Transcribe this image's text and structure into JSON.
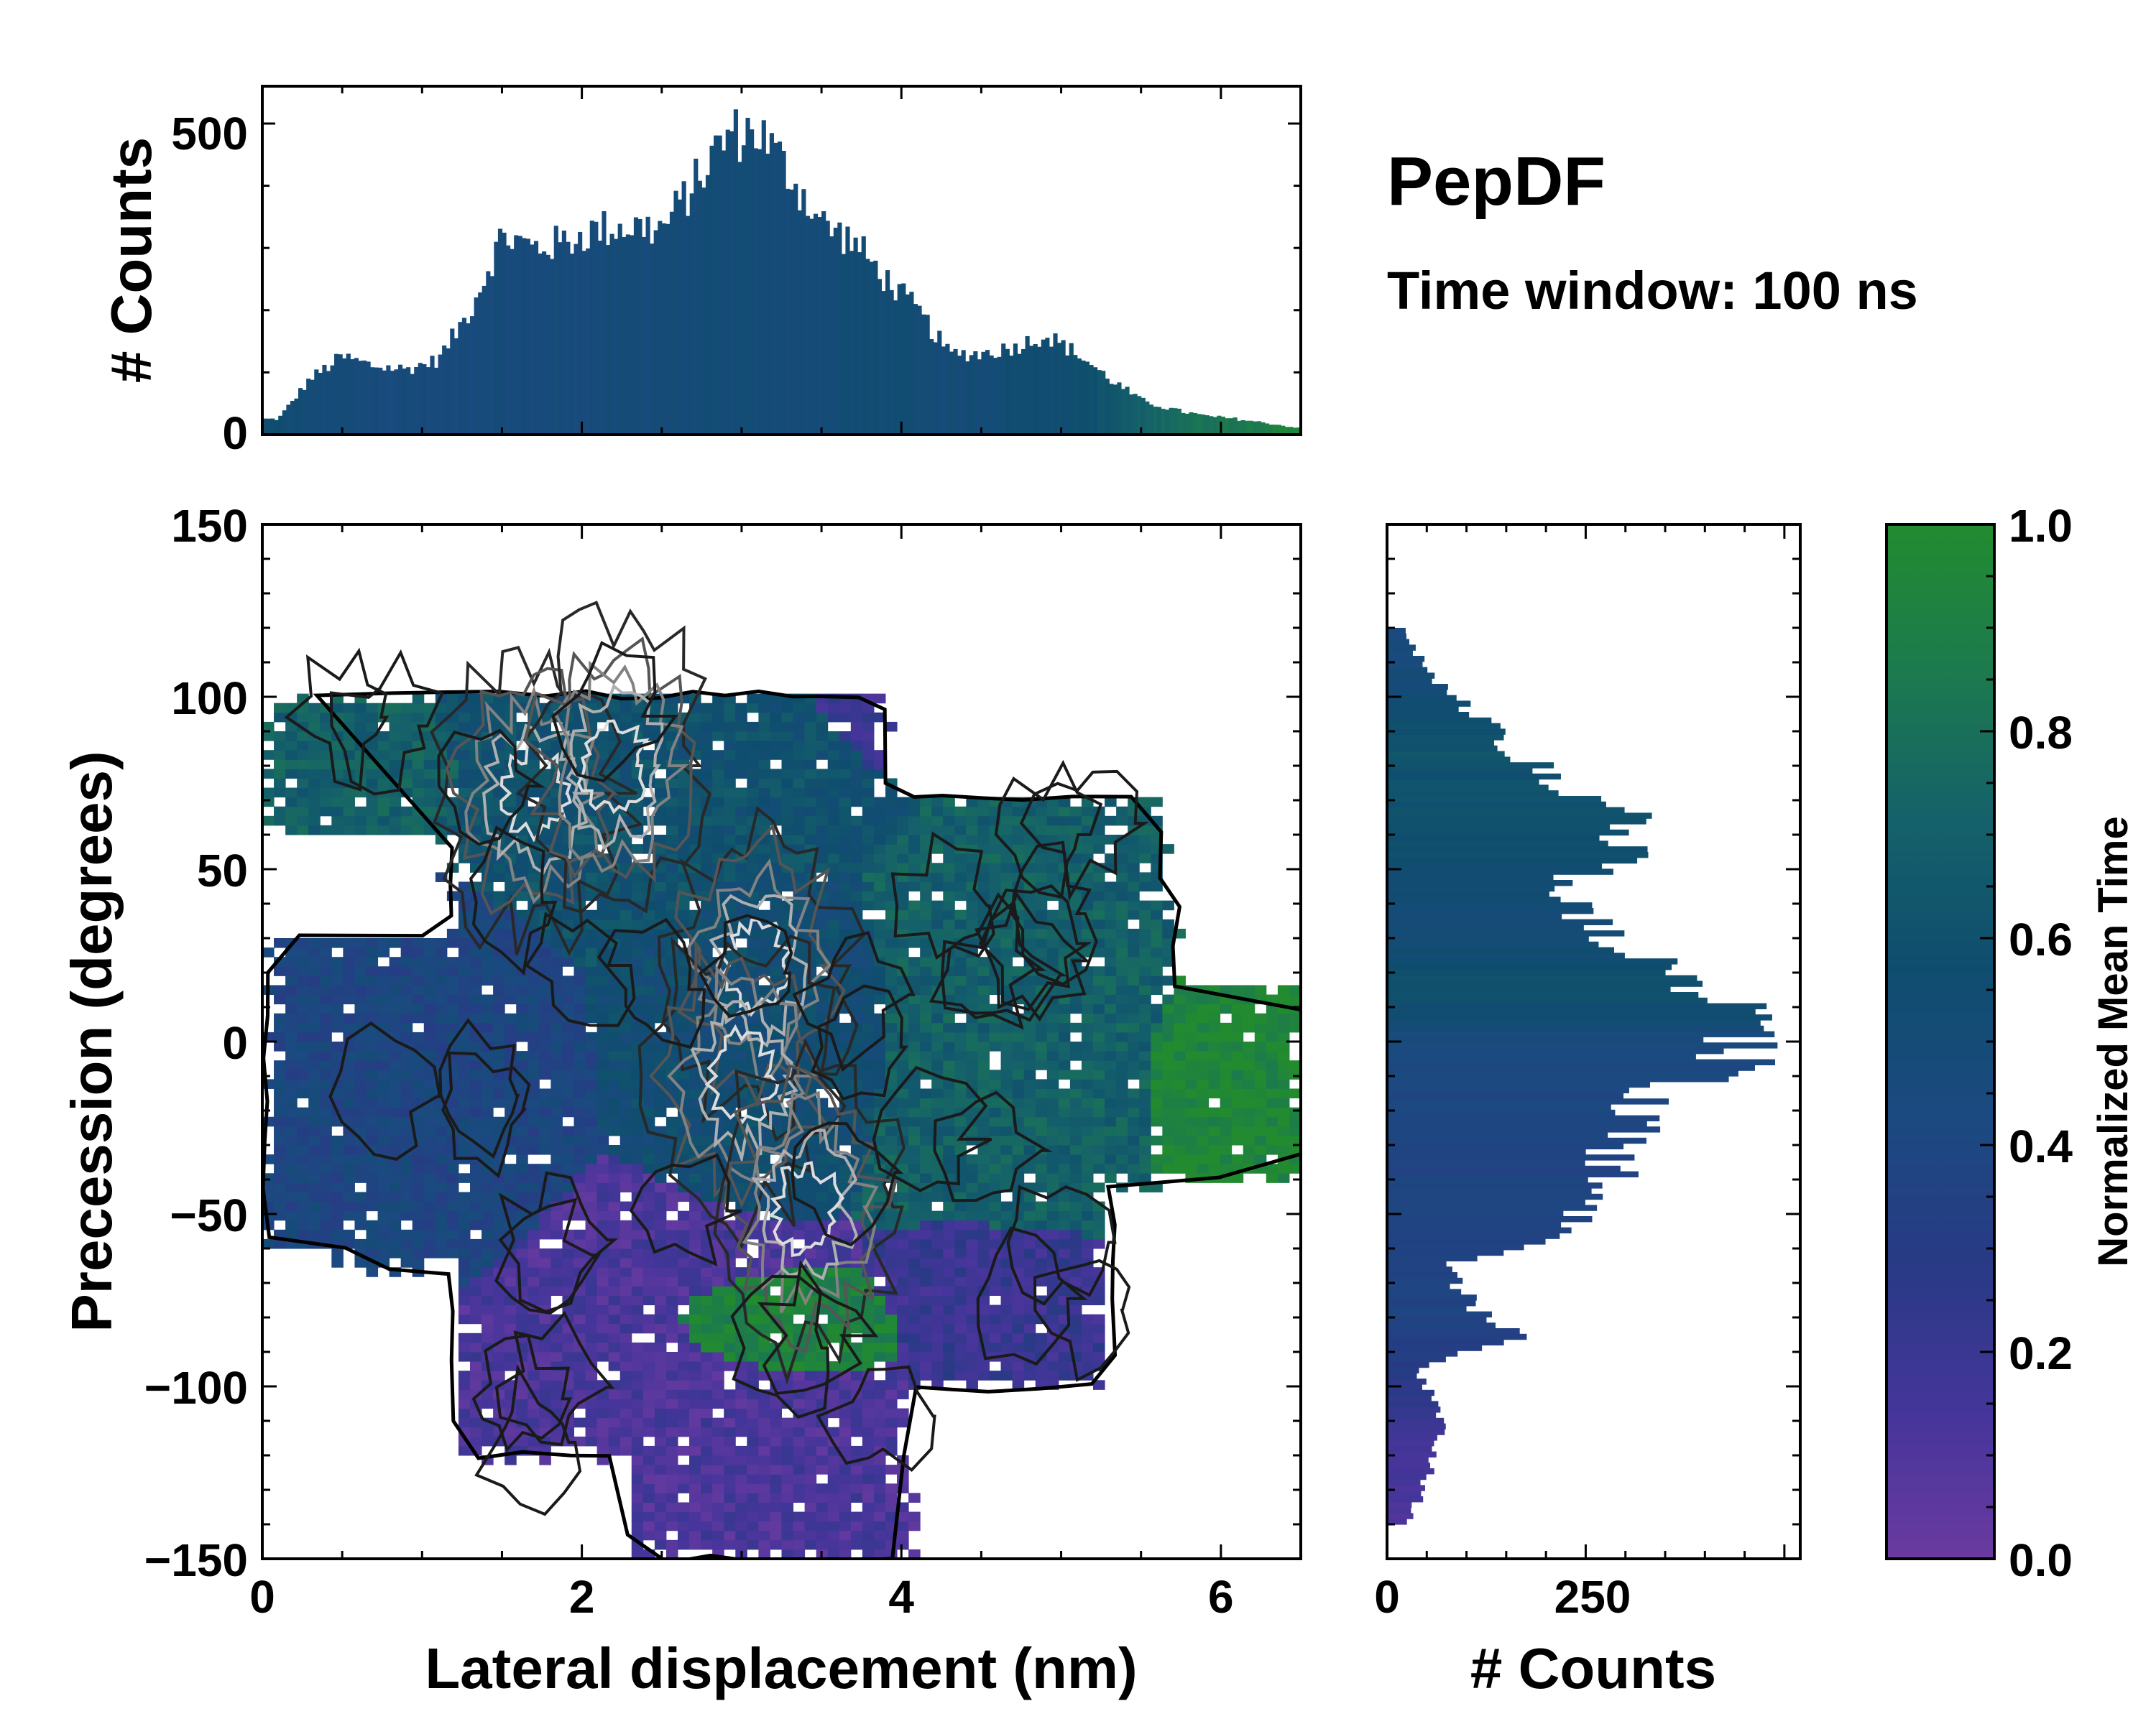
{
  "title": "PepDF",
  "subtitle": "Time window: 100 ns",
  "colors": {
    "cmap": [
      "#6a3aa0",
      "#45359a",
      "#283a85",
      "#1b4a80",
      "#0f4d6e",
      "#15616a",
      "#1c7a4e",
      "#228b2f"
    ],
    "contour_dark": "#1a1a1a",
    "contour_light": "#e8e8e8",
    "frame": "#000000"
  },
  "chart_data": [
    {
      "id": "top-histogram",
      "type": "bar",
      "ylabel": "# Counts",
      "xlim": [
        0,
        6.5
      ],
      "ylim": [
        0,
        560
      ],
      "yticks": [
        0,
        500
      ],
      "ytick_labels": [
        "0",
        "500"
      ],
      "bin_centers_nm": [
        0.1,
        0.3,
        0.5,
        0.7,
        0.9,
        1.1,
        1.3,
        1.5,
        1.7,
        1.9,
        2.1,
        2.3,
        2.5,
        2.7,
        2.9,
        3.1,
        3.3,
        3.5,
        3.7,
        3.9,
        4.1,
        4.3,
        4.5,
        4.7,
        4.9,
        5.1,
        5.3,
        5.5,
        5.7,
        5.9,
        6.1,
        6.3,
        6.5
      ],
      "counts": [
        25,
        90,
        125,
        110,
        105,
        120,
        200,
        320,
        300,
        310,
        330,
        335,
        330,
        400,
        480,
        490,
        420,
        340,
        310,
        250,
        200,
        130,
        130,
        140,
        160,
        130,
        90,
        55,
        40,
        30,
        25,
        18,
        10
      ],
      "mean_time_by_bin": [
        0.55,
        0.5,
        0.5,
        0.47,
        0.47,
        0.45,
        0.45,
        0.47,
        0.47,
        0.47,
        0.48,
        0.49,
        0.5,
        0.5,
        0.5,
        0.5,
        0.5,
        0.5,
        0.52,
        0.53,
        0.52,
        0.5,
        0.52,
        0.55,
        0.55,
        0.57,
        0.62,
        0.7,
        0.78,
        0.82,
        0.85,
        0.9,
        0.95
      ]
    },
    {
      "id": "joint-map",
      "type": "heatmap",
      "xlabel": "Lateral displacement (nm)",
      "ylabel": "Precession (degrees)",
      "xlim": [
        0,
        6.5
      ],
      "ylim": [
        -150,
        150
      ],
      "xticks": [
        0,
        2,
        4,
        6
      ],
      "xtick_labels": [
        "0",
        "2",
        "4",
        "6"
      ],
      "yticks": [
        -150,
        -100,
        -50,
        0,
        50,
        100,
        150
      ],
      "ytick_labels": [
        "−150",
        "−100",
        "−50",
        "0",
        "50",
        "100",
        "150"
      ],
      "color_by": "Normalized Mean Time",
      "regions": [
        {
          "label": "upper-left",
          "x_range": [
            0,
            1.2
          ],
          "y_range": [
            55,
            100
          ],
          "mean_time": 0.7
        },
        {
          "label": "upper band",
          "x_range": [
            1.2,
            3.6
          ],
          "y_range": [
            50,
            115
          ],
          "mean_time": 0.6
        },
        {
          "label": "upper-right",
          "x_range": [
            3.5,
            5.0
          ],
          "y_range": [
            80,
            120
          ],
          "mean_time": 0.2
        },
        {
          "label": "right lobe",
          "x_range": [
            5.6,
            6.5
          ],
          "y_range": [
            -40,
            15
          ],
          "mean_time": 0.95
        },
        {
          "label": "central core",
          "x_range": [
            2.6,
            3.8
          ],
          "y_range": [
            -30,
            40
          ],
          "mean_time": 0.55
        },
        {
          "label": "left middle",
          "x_range": [
            0.2,
            1.5
          ],
          "y_range": [
            -60,
            30
          ],
          "mean_time": 0.4
        },
        {
          "label": "lower",
          "x_range": [
            1.2,
            3.8
          ],
          "y_range": [
            -150,
            -70
          ],
          "mean_time": 0.12
        },
        {
          "label": "lower green patch",
          "x_range": [
            2.4,
            3.9
          ],
          "y_range": [
            -100,
            -70
          ],
          "mean_time": 0.92
        },
        {
          "label": "lower right",
          "x_range": [
            4.0,
            5.3
          ],
          "y_range": [
            -100,
            -55
          ],
          "mean_time": 0.2
        },
        {
          "label": "right middle",
          "x_range": [
            4.0,
            5.5
          ],
          "y_range": [
            -50,
            60
          ],
          "mean_time": 0.7
        }
      ],
      "density_peaks": [
        {
          "x": 3.1,
          "y": 22
        },
        {
          "x": 1.7,
          "y": 72
        },
        {
          "x": 2.2,
          "y": 80
        },
        {
          "x": 3.0,
          "y": -10
        },
        {
          "x": 3.4,
          "y": -48
        }
      ]
    },
    {
      "id": "right-histogram",
      "type": "bar",
      "orientation": "horizontal",
      "xlabel": "# Counts",
      "xlim": [
        0,
        520
      ],
      "ylim": [
        -150,
        150
      ],
      "xticks": [
        0,
        250
      ],
      "xtick_labels": [
        "0",
        "250"
      ],
      "bin_centers_deg": [
        -145,
        -135,
        -125,
        -115,
        -105,
        -95,
        -85,
        -75,
        -65,
        -55,
        -45,
        -35,
        -25,
        -15,
        -5,
        5,
        15,
        25,
        35,
        45,
        55,
        65,
        75,
        85,
        95,
        105,
        115,
        125
      ],
      "counts": [
        20,
        35,
        55,
        70,
        60,
        40,
        160,
        100,
        80,
        220,
        260,
        290,
        300,
        350,
        440,
        430,
        410,
        300,
        250,
        220,
        300,
        310,
        210,
        160,
        110,
        60,
        30,
        10
      ],
      "mean_time_by_bin": [
        0.12,
        0.12,
        0.15,
        0.15,
        0.25,
        0.3,
        0.35,
        0.38,
        0.35,
        0.38,
        0.38,
        0.38,
        0.4,
        0.4,
        0.42,
        0.5,
        0.6,
        0.55,
        0.5,
        0.55,
        0.58,
        0.6,
        0.6,
        0.62,
        0.55,
        0.5,
        0.45,
        0.4
      ]
    },
    {
      "id": "colorbar",
      "type": "colorbar",
      "label": "Normalized Mean Time",
      "range": [
        0,
        1
      ],
      "ticks": [
        0,
        0.2,
        0.4,
        0.6,
        0.8,
        1
      ],
      "tick_labels": [
        "0.0",
        "0.2",
        "0.4",
        "0.6",
        "0.8",
        "1.0"
      ]
    }
  ]
}
